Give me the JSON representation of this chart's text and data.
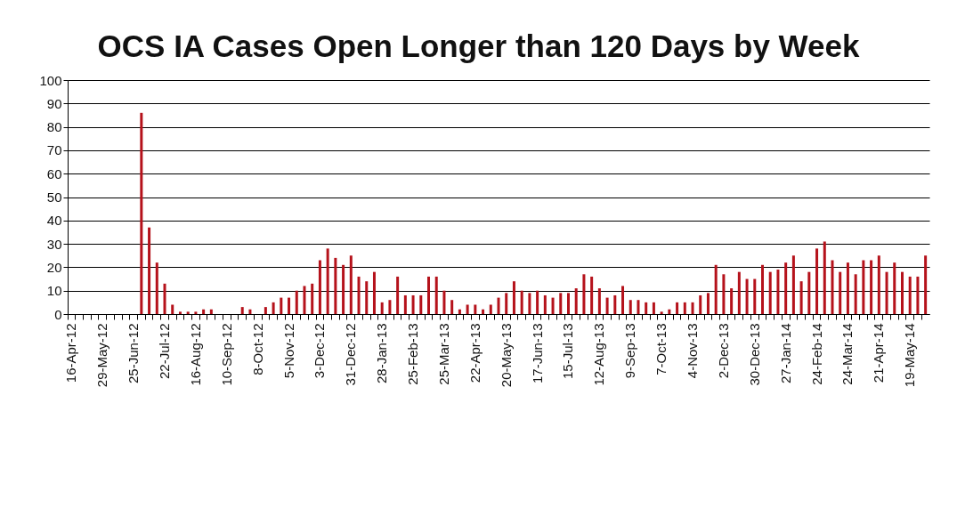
{
  "chart_data": {
    "type": "bar",
    "title": "OCS IA Cases Open Longer than 120 Days by Week",
    "categories": [
      "16-Apr-12",
      null,
      null,
      null,
      "29-May-12",
      null,
      null,
      null,
      "25-Jun-12",
      null,
      null,
      null,
      "22-Jul-12",
      null,
      null,
      null,
      "16-Aug-12",
      null,
      null,
      null,
      "10-Sep-12",
      null,
      null,
      null,
      "8-Oct-12",
      null,
      null,
      null,
      "5-Nov-12",
      null,
      null,
      null,
      "3-Dec-12",
      null,
      null,
      null,
      "31-Dec-12",
      null,
      null,
      null,
      "28-Jan-13",
      null,
      null,
      null,
      "25-Feb-13",
      null,
      null,
      null,
      "25-Mar-13",
      null,
      null,
      null,
      "22-Apr-13",
      null,
      null,
      null,
      "20-May-13",
      null,
      null,
      null,
      "17-Jun-13",
      null,
      null,
      null,
      "15-Jul-13",
      null,
      null,
      null,
      "12-Aug-13",
      null,
      null,
      null,
      "9-Sep-13",
      null,
      null,
      null,
      "7-Oct-13",
      null,
      null,
      null,
      "4-Nov-13",
      null,
      null,
      null,
      "2-Dec-13",
      null,
      null,
      null,
      "30-Dec-13",
      null,
      null,
      null,
      "27-Jan-14",
      null,
      null,
      null,
      "24-Feb-14",
      null,
      null,
      null,
      "24-Mar-14",
      null,
      null,
      null,
      "21-Apr-14",
      null,
      null,
      null,
      "19-May-14",
      null,
      null
    ],
    "values": [
      0,
      0,
      0,
      0,
      0,
      0,
      0,
      0,
      0,
      86,
      37,
      22,
      13,
      4,
      1,
      1,
      1,
      2,
      2,
      0,
      0,
      0,
      3,
      2,
      0,
      3,
      5,
      7,
      7,
      10,
      12,
      13,
      23,
      28,
      24,
      21,
      25,
      16,
      14,
      18,
      5,
      6,
      16,
      8,
      8,
      8,
      16,
      16,
      10,
      6,
      2,
      4,
      4,
      2,
      4,
      7,
      9,
      14,
      10,
      9,
      10,
      8,
      7,
      9,
      9,
      11,
      17,
      16,
      11,
      7,
      8,
      12,
      6,
      6,
      5,
      5,
      1,
      2,
      5,
      5,
      5,
      8,
      9,
      21,
      17,
      11,
      18,
      15,
      15,
      21,
      18,
      19,
      22,
      25,
      14,
      18,
      28,
      31,
      23,
      18,
      22,
      17,
      23,
      23,
      25,
      18,
      22,
      18,
      16,
      16,
      25
    ],
    "color": "#b5121b",
    "ylim": [
      0,
      100
    ],
    "yticks": [
      0,
      10,
      20,
      30,
      40,
      50,
      60,
      70,
      80,
      90,
      100
    ],
    "grid": true
  }
}
